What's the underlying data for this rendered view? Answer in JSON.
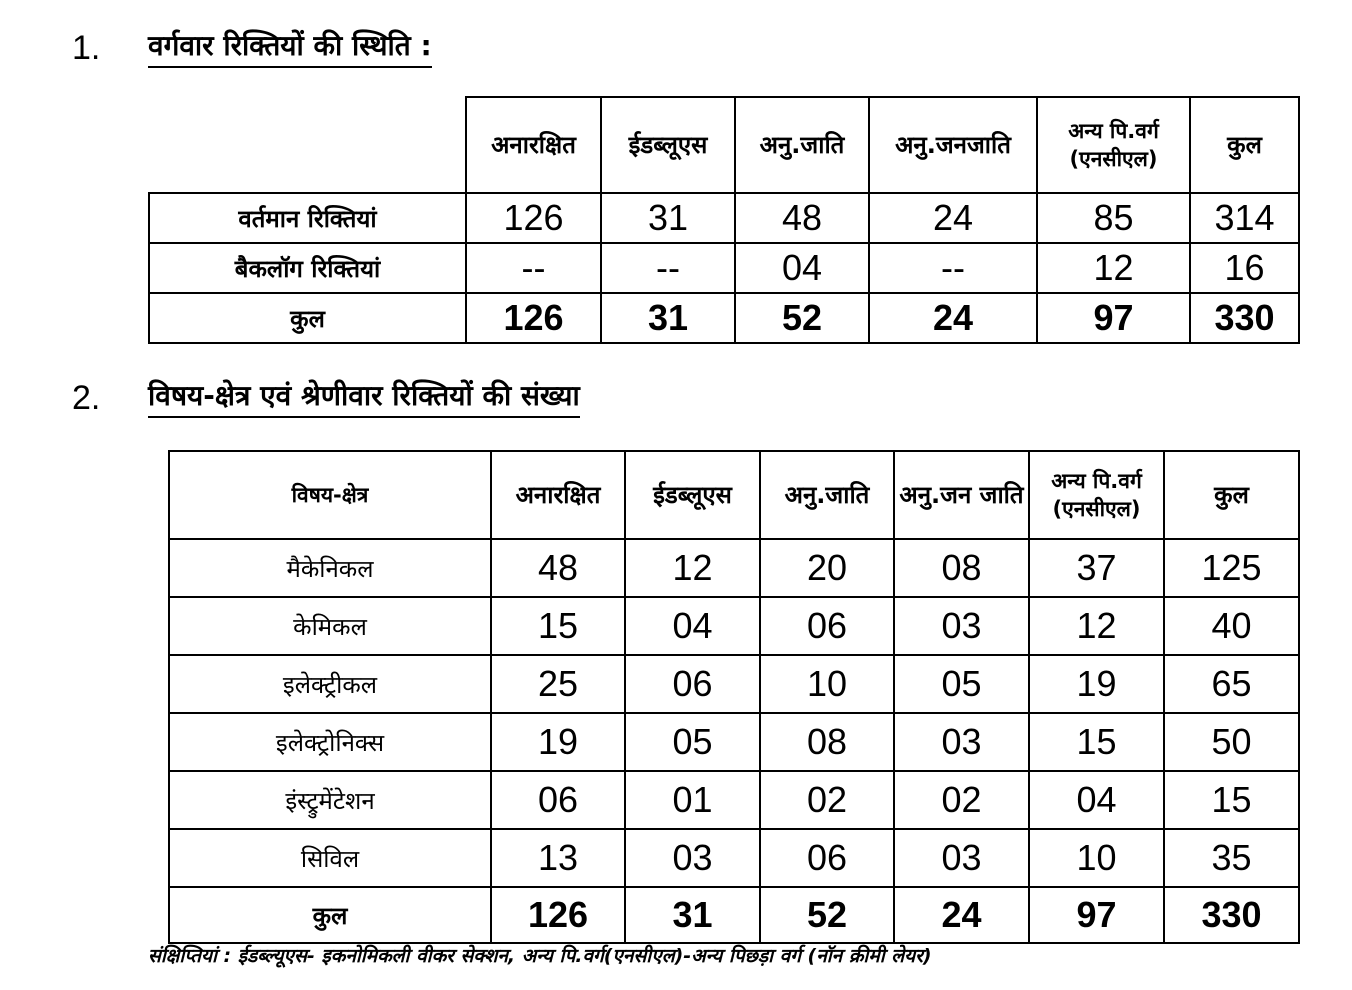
{
  "section1": {
    "number": "1.",
    "title": "वर्गवार रिक्तियों की स्थिति :",
    "headers": [
      "अनारक्षित",
      "ईडब्लूएस",
      "अनु.जाति",
      "अनु.जनजाति",
      "अन्य पि.वर्ग (एनसीएल)",
      "कुल"
    ],
    "rows": [
      {
        "label": "वर्तमान रिक्तियां",
        "values": [
          "126",
          "31",
          "48",
          "24",
          "85",
          "314"
        ]
      },
      {
        "label": "बैकलॉग रिक्तियां",
        "values": [
          "--",
          "--",
          "04",
          "--",
          "12",
          "16"
        ]
      }
    ],
    "total": {
      "label": "कुल",
      "values": [
        "126",
        "31",
        "52",
        "24",
        "97",
        "330"
      ]
    }
  },
  "section2": {
    "number": "2.",
    "title": "विषय-क्षेत्र एवं श्रेणीवार रिक्तियों की संख्या",
    "first_header": "विषय-क्षेत्र",
    "headers": [
      "अनारक्षित",
      "ईडब्लूएस",
      "अनु.जाति",
      "अनु.जन जाति",
      "अन्य पि.वर्ग (एनसीएल)",
      "कुल"
    ],
    "rows": [
      {
        "label": "मैकेनिकल",
        "values": [
          "48",
          "12",
          "20",
          "08",
          "37",
          "125"
        ]
      },
      {
        "label": "केमिकल",
        "values": [
          "15",
          "04",
          "06",
          "03",
          "12",
          "40"
        ]
      },
      {
        "label": "इलेक्ट्रीकल",
        "values": [
          "25",
          "06",
          "10",
          "05",
          "19",
          "65"
        ]
      },
      {
        "label": "इलेक्ट्रोनिक्स",
        "values": [
          "19",
          "05",
          "08",
          "03",
          "15",
          "50"
        ]
      },
      {
        "label": "इंस्ट्रुमेंटेशन",
        "values": [
          "06",
          "01",
          "02",
          "02",
          "04",
          "15"
        ]
      },
      {
        "label": "सिविल",
        "values": [
          "13",
          "03",
          "06",
          "03",
          "10",
          "35"
        ]
      }
    ],
    "total": {
      "label": "कुल",
      "values": [
        "126",
        "31",
        "52",
        "24",
        "97",
        "330"
      ]
    }
  },
  "footnote": "संक्षिप्तियां : ईडब्ल्यूएस- इकनोमिकली वीकर सेक्शन, अन्य पि.वर्ग(एनसीएल)-अन्य पिछड़ा वर्ग (नॉन क्रीमी लेयर)"
}
